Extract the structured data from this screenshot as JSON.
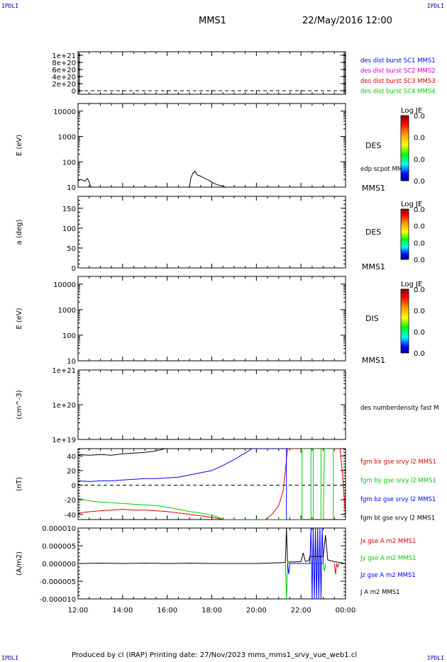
{
  "corners": {
    "tl": "IPDLI",
    "tr": "IPDLI",
    "bl": "IPDLI",
    "br": "IPDLI"
  },
  "header": {
    "spacecraft": "MMS1",
    "datetime": "22/May/2016 12:00"
  },
  "footer": {
    "text": "Produced by cl (IRAP)   Printing date: 27/Nov/2023   mms_mms1_srvy_vue_web1.cl"
  },
  "colors": {
    "black": "#000000",
    "blue": "#0000ff",
    "magenta": "#cc00cc",
    "red": "#dd0000",
    "green": "#00cc00"
  },
  "chart_data": [
    {
      "type": "line",
      "panel": "des-dist-burst",
      "ylabel": "",
      "ylim": [
        -1e+20,
        1.1e+21
      ],
      "yticks": [
        "1e+21",
        "8e+20",
        "6e+20",
        "4e+20",
        "2e+20",
        "0"
      ],
      "ytick_values": [
        1e+21,
        8e+20,
        6e+20,
        4e+20,
        2e+20,
        0
      ],
      "dashed_zero_line": true,
      "series": [
        {
          "name": "des dist burst SC1 MMS1",
          "color": "#0000ff",
          "points": []
        },
        {
          "name": "des dist burst SC2 MMS2",
          "color": "#cc00cc",
          "points": []
        },
        {
          "name": "des dist burst SC3 MMS3",
          "color": "#dd0000",
          "points": []
        },
        {
          "name": "des dist burst SC4 MMS4",
          "color": "#00cc00",
          "points": []
        }
      ]
    },
    {
      "type": "line",
      "panel": "des-energy",
      "ylabel": "E (eV)",
      "yscale": "log",
      "ylim": [
        10,
        20000
      ],
      "yticks": [
        "10000",
        "1000",
        "100",
        "10"
      ],
      "ytick_values": [
        10000,
        1000,
        100,
        10
      ],
      "instrument": "DES",
      "spacecraft": "MMS1",
      "colorbar": {
        "title": "Log JE",
        "labels": [
          "0.0",
          "0.0",
          "0.0",
          "0.0"
        ]
      },
      "series": [
        {
          "name": "edp scpot MMS1",
          "color": "#000000",
          "points": [
            [
              12.0,
              18
            ],
            [
              12.15,
              20
            ],
            [
              12.3,
              17
            ],
            [
              12.42,
              22
            ],
            [
              12.5,
              16
            ],
            [
              12.55,
              11
            ],
            [
              12.6,
              10
            ],
            [
              17.0,
              10
            ],
            [
              17.05,
              22
            ],
            [
              17.15,
              35
            ],
            [
              17.25,
              42
            ],
            [
              17.35,
              30
            ],
            [
              17.5,
              27
            ],
            [
              17.7,
              22
            ],
            [
              17.9,
              18
            ],
            [
              18.1,
              14
            ],
            [
              18.3,
              12
            ],
            [
              18.5,
              11
            ],
            [
              18.6,
              10
            ]
          ]
        }
      ]
    },
    {
      "type": "heatmap",
      "panel": "des-pitch",
      "ylabel": "a (deg)",
      "ylim": [
        0,
        180
      ],
      "yticks": [
        "150",
        "100",
        "50",
        "0"
      ],
      "ytick_values": [
        150,
        100,
        50,
        0
      ],
      "instrument": "DES",
      "spacecraft": "MMS1",
      "colorbar": {
        "title": "Log JE",
        "labels": [
          "0.0",
          "0.0",
          "0.0",
          "0.0"
        ]
      }
    },
    {
      "type": "heatmap",
      "panel": "dis-energy",
      "ylabel": "E (eV)",
      "yscale": "log",
      "ylim": [
        10,
        20000
      ],
      "yticks": [
        "10000",
        "1000",
        "100",
        "10"
      ],
      "ytick_values": [
        10000,
        1000,
        100,
        10
      ],
      "instrument": "DIS",
      "spacecraft": "MMS1",
      "colorbar": {
        "title": "Log JE",
        "labels": [
          "0.0",
          "0.0",
          "0.0",
          "0.0"
        ]
      }
    },
    {
      "type": "line",
      "panel": "number-density",
      "ylabel": "(cm^-3)",
      "yscale": "log",
      "ylim": [
        1e+19,
        1e+21
      ],
      "yticks": [
        "1e+21",
        "1e+20",
        "1e+19"
      ],
      "ytick_values": [
        1e+21,
        1e+20,
        1e+19
      ],
      "series": [
        {
          "name": "des numberdensity fast M",
          "color": "#000000",
          "points": []
        }
      ]
    },
    {
      "type": "line",
      "panel": "magnetic-field",
      "ylabel": "(nT)",
      "ylim": [
        -47,
        50
      ],
      "yticks": [
        "40",
        "20",
        "0",
        "-20",
        "-40"
      ],
      "ytick_values": [
        40,
        20,
        0,
        -20,
        -40
      ],
      "dashed_zero_line": true,
      "series": [
        {
          "name": "fgm bx gse srvy l2 MMS1",
          "color": "#dd0000",
          "points": [
            [
              12.0,
              -38
            ],
            [
              12.3,
              -37
            ],
            [
              12.6,
              -36
            ],
            [
              13.0,
              -35
            ],
            [
              13.5,
              -34
            ],
            [
              14.0,
              -33
            ],
            [
              14.5,
              -34
            ],
            [
              15.0,
              -34
            ],
            [
              15.5,
              -35
            ],
            [
              16.0,
              -36
            ],
            [
              16.5,
              -38
            ],
            [
              17.0,
              -40
            ],
            [
              17.5,
              -42
            ],
            [
              18.0,
              -44
            ],
            [
              18.4,
              -46
            ],
            [
              18.6,
              -47
            ],
            [
              20.4,
              -47
            ],
            [
              20.7,
              -40
            ],
            [
              21.0,
              -28
            ],
            [
              21.2,
              -8
            ],
            [
              21.3,
              20
            ],
            [
              21.4,
              50
            ],
            [
              23.75,
              50
            ],
            [
              23.85,
              20
            ],
            [
              23.95,
              -20
            ],
            [
              24.0,
              -45
            ]
          ]
        },
        {
          "name": "fgm by gse srvy l2 MMS1",
          "color": "#00cc00",
          "points": [
            [
              12.0,
              -18
            ],
            [
              12.3,
              -20
            ],
            [
              12.6,
              -22
            ],
            [
              13.0,
              -23
            ],
            [
              13.5,
              -24
            ],
            [
              14.0,
              -25
            ],
            [
              14.5,
              -26
            ],
            [
              15.0,
              -27
            ],
            [
              15.5,
              -28
            ],
            [
              16.0,
              -30
            ],
            [
              16.5,
              -33
            ],
            [
              17.0,
              -36
            ],
            [
              17.5,
              -38
            ],
            [
              18.0,
              -41
            ],
            [
              18.3,
              -44
            ],
            [
              18.5,
              -47
            ],
            [
              22.05,
              -47
            ],
            [
              22.05,
              50
            ],
            [
              22.45,
              50
            ],
            [
              22.45,
              -47
            ],
            [
              22.55,
              -47
            ],
            [
              22.55,
              50
            ],
            [
              22.9,
              50
            ],
            [
              22.9,
              -47
            ],
            [
              23.0,
              -47
            ],
            [
              23.05,
              50
            ],
            [
              23.45,
              50
            ],
            [
              23.45,
              -47
            ]
          ]
        },
        {
          "name": "fgm bz gse srvy l2 MMS1",
          "color": "#0000ff",
          "points": [
            [
              12.0,
              6
            ],
            [
              12.5,
              5
            ],
            [
              13.0,
              6
            ],
            [
              13.5,
              6
            ],
            [
              14.0,
              7
            ],
            [
              14.5,
              8
            ],
            [
              15.0,
              9
            ],
            [
              15.5,
              9
            ],
            [
              16.0,
              10
            ],
            [
              16.5,
              11
            ],
            [
              17.0,
              14
            ],
            [
              17.5,
              17
            ],
            [
              18.0,
              20
            ],
            [
              18.5,
              27
            ],
            [
              19.0,
              35
            ],
            [
              19.5,
              44
            ],
            [
              19.8,
              50
            ],
            [
              21.35,
              50
            ],
            [
              21.35,
              -47
            ]
          ]
        },
        {
          "name": "fgm bt gse srvy l2 MMS1",
          "color": "#000000",
          "points": [
            [
              12.0,
              42
            ],
            [
              12.5,
              41
            ],
            [
              13.0,
              42
            ],
            [
              13.5,
              41
            ],
            [
              14.0,
              43
            ],
            [
              14.5,
              44
            ],
            [
              15.0,
              45
            ],
            [
              15.5,
              47
            ],
            [
              15.9,
              50
            ]
          ]
        }
      ]
    },
    {
      "type": "line",
      "panel": "current-density",
      "ylabel": "(A/m2)",
      "ylim": [
        -1e-05,
        1e-05
      ],
      "yticks": [
        "0.000010",
        "0.000005",
        "0.000000",
        "-0.000005",
        "-0.000010"
      ],
      "ytick_values": [
        1e-05,
        5e-06,
        0,
        -5e-06,
        -1e-05
      ],
      "x": {
        "ticks": [
          "12:00",
          "14:00",
          "16:00",
          "18:00",
          "20:00",
          "22:00",
          "00:00"
        ],
        "tick_hours": [
          12,
          14,
          16,
          18,
          20,
          22,
          24
        ],
        "range": [
          12,
          24
        ]
      },
      "series": [
        {
          "name": "Jx gse A m2 MMS1",
          "color": "#dd0000",
          "points": [
            [
              23.5,
              0
            ],
            [
              23.55,
              -3e-06
            ],
            [
              23.6,
              0
            ],
            [
              23.65,
              -1e-06
            ],
            [
              23.7,
              0
            ]
          ]
        },
        {
          "name": "Jy gse A m2 MMS1",
          "color": "#00cc00",
          "points": [
            [
              21.3,
              0
            ],
            [
              21.35,
              -1e-05
            ],
            [
              21.4,
              0
            ],
            [
              23.0,
              0
            ],
            [
              23.05,
              -2.2e-06
            ],
            [
              23.1,
              0
            ]
          ]
        },
        {
          "name": "Jz gse A m2 MMS1",
          "color": "#0000ff",
          "points": [
            [
              21.4,
              0
            ],
            [
              21.45,
              -3e-06
            ],
            [
              21.5,
              0
            ],
            [
              22.4,
              0
            ],
            [
              22.45,
              1e-05
            ],
            [
              22.5,
              -1e-05
            ],
            [
              22.55,
              1e-05
            ],
            [
              22.6,
              -1e-05
            ],
            [
              22.65,
              1e-05
            ],
            [
              22.7,
              -1e-05
            ],
            [
              22.75,
              1e-05
            ],
            [
              22.8,
              -1e-05
            ],
            [
              22.85,
              1e-05
            ],
            [
              22.9,
              -1e-05
            ],
            [
              22.95,
              1e-05
            ],
            [
              23.0,
              0
            ]
          ]
        },
        {
          "name": "J A m2 MMS1",
          "color": "#000000",
          "points": [
            [
              12.0,
              0
            ],
            [
              13.0,
              1e-07
            ],
            [
              14.0,
              0
            ],
            [
              15.0,
              1e-07
            ],
            [
              16.0,
              0
            ],
            [
              17.0,
              1e-07
            ],
            [
              18.0,
              0
            ],
            [
              19.0,
              0
            ],
            [
              20.0,
              0
            ],
            [
              21.0,
              2e-07
            ],
            [
              21.3,
              3e-07
            ],
            [
              21.35,
              1e-05
            ],
            [
              21.4,
              4e-07
            ],
            [
              22.0,
              5e-07
            ],
            [
              22.1,
              3e-06
            ],
            [
              22.2,
              6e-07
            ],
            [
              22.35,
              8e-07
            ],
            [
              22.4,
              2e-06
            ],
            [
              23.0,
              2e-06
            ],
            [
              23.1,
              8e-06
            ],
            [
              23.2,
              1e-06
            ],
            [
              23.5,
              5e-07
            ],
            [
              24.0,
              0
            ]
          ]
        }
      ]
    }
  ]
}
